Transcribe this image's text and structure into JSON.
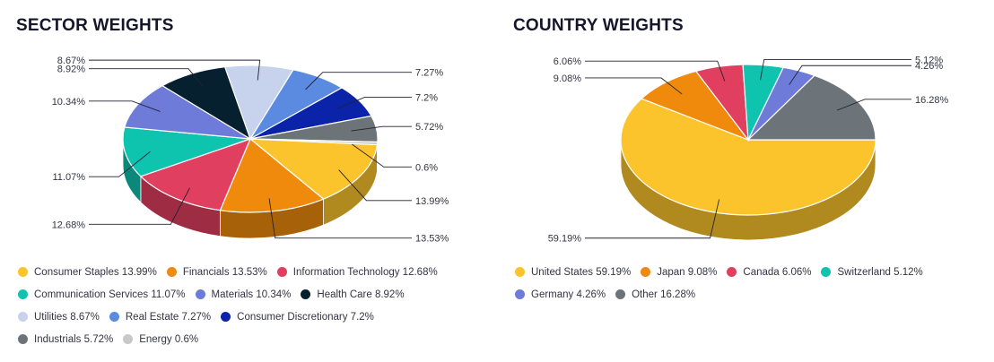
{
  "chart_data": [
    {
      "type": "pie",
      "title": "SECTOR WEIGHTS",
      "slices": [
        {
          "label": "Consumer Staples",
          "value": 13.99,
          "display": "13.99%",
          "color": "#fcc42c"
        },
        {
          "label": "Financials",
          "value": 13.53,
          "display": "13.53%",
          "color": "#ef8a0c"
        },
        {
          "label": "Information Technology",
          "value": 12.68,
          "display": "12.68%",
          "color": "#e13f60"
        },
        {
          "label": "Communication Services",
          "value": 11.07,
          "display": "11.07%",
          "color": "#0ec4ae"
        },
        {
          "label": "Materials",
          "value": 10.34,
          "display": "10.34%",
          "color": "#6f7bd8"
        },
        {
          "label": "Health Care",
          "value": 8.92,
          "display": "8.92%",
          "color": "#06202f"
        },
        {
          "label": "Utilities",
          "value": 8.67,
          "display": "8.67%",
          "color": "#c7d2ec"
        },
        {
          "label": "Real Estate",
          "value": 7.27,
          "display": "7.27%",
          "color": "#5b8be0"
        },
        {
          "label": "Consumer Discretionary",
          "value": 7.2,
          "display": "7.2%",
          "color": "#0a23a8"
        },
        {
          "label": "Industrials",
          "value": 5.72,
          "display": "5.72%",
          "color": "#6d7479"
        },
        {
          "label": "Energy",
          "value": 0.6,
          "display": "0.6%",
          "color": "#c8c8c8"
        }
      ],
      "legend_rows": [
        [
          0,
          1,
          2
        ],
        [
          3,
          4,
          5
        ],
        [
          6,
          7,
          8
        ],
        [
          9,
          10
        ]
      ]
    },
    {
      "type": "pie",
      "title": "COUNTRY WEIGHTS",
      "slices": [
        {
          "label": "United States",
          "value": 59.19,
          "display": "59.19%",
          "color": "#fcc42c"
        },
        {
          "label": "Japan",
          "value": 9.08,
          "display": "9.08%",
          "color": "#ef8a0c"
        },
        {
          "label": "Canada",
          "value": 6.06,
          "display": "6.06%",
          "color": "#e13f60"
        },
        {
          "label": "Switzerland",
          "value": 5.12,
          "display": "5.12%",
          "color": "#0ec4ae"
        },
        {
          "label": "Germany",
          "value": 4.26,
          "display": "4.26%",
          "color": "#6f7bd8"
        },
        {
          "label": "Other",
          "value": 16.28,
          "display": "16.28%",
          "color": "#6d7479"
        }
      ],
      "legend_rows": [
        [
          0,
          1,
          2,
          3
        ],
        [
          4,
          5
        ]
      ]
    }
  ]
}
